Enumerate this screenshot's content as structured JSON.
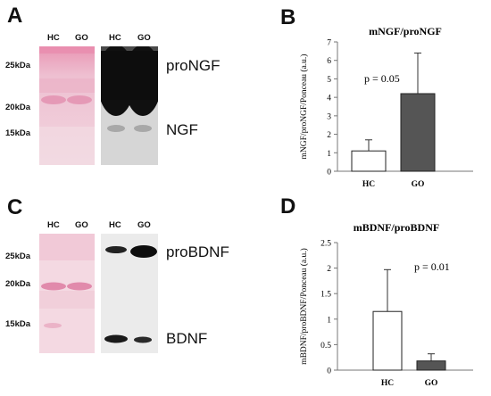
{
  "panels": {
    "A": {
      "letter": "A",
      "lane_labels_ponceau": [
        "HC",
        "GO"
      ],
      "lane_labels_wb": [
        "HC",
        "GO"
      ],
      "markers": [
        "25kDa",
        "20kDa",
        "15kDa"
      ],
      "bands": [
        "proNGF",
        "NGF"
      ]
    },
    "B": {
      "letter": "B"
    },
    "C": {
      "letter": "C",
      "lane_labels_ponceau": [
        "HC",
        "GO"
      ],
      "lane_labels_wb": [
        "HC",
        "GO"
      ],
      "markers": [
        "25kDa",
        "20kDa",
        "15kDa"
      ],
      "bands": [
        "proBDNF",
        "BDNF"
      ]
    },
    "D": {
      "letter": "D"
    }
  },
  "chart_data": [
    {
      "type": "bar",
      "title": "mNGF/proNGF",
      "ylabel": "mNGF/proNGF/Ponceau (a.u.)",
      "xlabel": "",
      "categories": [
        "HC",
        "GO"
      ],
      "values": [
        1.1,
        4.2
      ],
      "errors": [
        0.6,
        2.2
      ],
      "bar_colors": [
        "#ffffff",
        "#555555"
      ],
      "ylim": [
        0,
        7
      ],
      "yticks": [
        "0",
        "1",
        "2",
        "3",
        "4",
        "5",
        "6",
        "7"
      ],
      "annotation": "p = 0.05"
    },
    {
      "type": "bar",
      "title": "mBDNF/proBDNF",
      "ylabel": "mBDNF/proBDNF/Ponceau (a.u.)",
      "xlabel": "",
      "categories": [
        "HC",
        "GO"
      ],
      "values": [
        1.15,
        0.18
      ],
      "errors": [
        0.82,
        0.14
      ],
      "bar_colors": [
        "#ffffff",
        "#555555"
      ],
      "ylim": [
        0,
        2.5
      ],
      "yticks": [
        "0",
        "0.5",
        "1",
        "1.5",
        "2",
        "2.5"
      ],
      "annotation": "p = 0.01"
    }
  ]
}
